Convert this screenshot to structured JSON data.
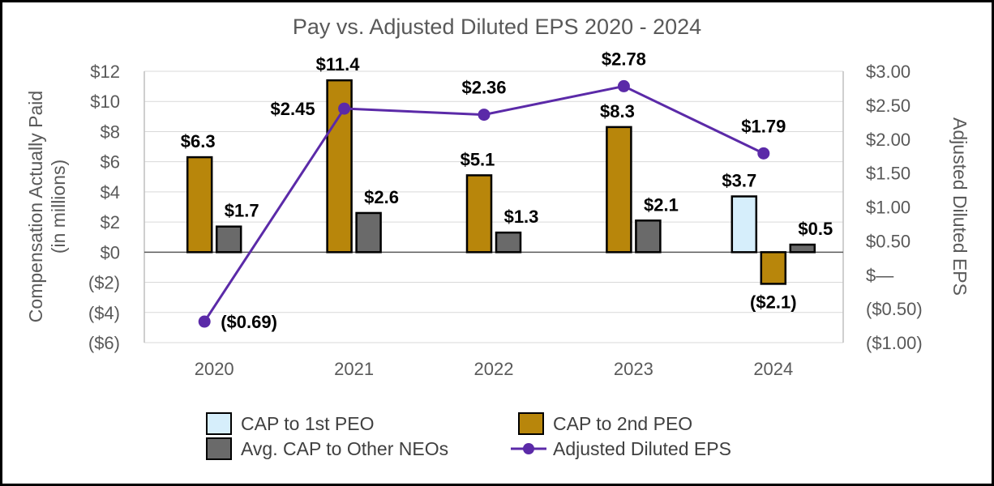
{
  "chart_data": {
    "type": "bar",
    "title": "Pay vs. Adjusted Diluted EPS 2020 - 2024",
    "categories": [
      "2020",
      "2021",
      "2022",
      "2023",
      "2024"
    ],
    "ylabel_left_line1": "Compensation Actually Paid",
    "ylabel_left_line2": "(in millions)",
    "ylabel_right": "Adjusted Diluted EPS",
    "ylim_left": [
      -6,
      12
    ],
    "ylim_right": [
      -1.0,
      3.0
    ],
    "left_ticks": [
      12,
      10,
      8,
      6,
      4,
      2,
      0,
      -2,
      -4,
      -6
    ],
    "left_tick_labels": [
      "$12",
      "$10",
      "$8",
      "$6",
      "$4",
      "$2",
      "$0",
      "($2)",
      "($4)",
      "($6)"
    ],
    "right_ticks": [
      3.0,
      2.5,
      2.0,
      1.5,
      1.0,
      0.5,
      0,
      -0.5,
      -1.0
    ],
    "right_tick_labels": [
      "$3.00",
      "$2.50",
      "$2.00",
      "$1.50",
      "$1.00",
      "$0.50",
      "$—",
      "($0.50)",
      "($1.00)"
    ],
    "series": [
      {
        "name": "CAP to 1st PEO",
        "type": "bar",
        "color": "#d6eefb",
        "values": [
          null,
          null,
          null,
          null,
          3.7
        ],
        "labels": [
          "",
          "",
          "",
          "",
          "$3.7"
        ]
      },
      {
        "name": "CAP to 2nd PEO",
        "type": "bar",
        "color": "#b8860b",
        "values": [
          6.3,
          11.4,
          5.1,
          8.3,
          -2.1
        ],
        "labels": [
          "$6.3",
          "$11.4",
          "$5.1",
          "$8.3",
          "($2.1)"
        ]
      },
      {
        "name": "Avg. CAP to Other NEOs",
        "type": "bar",
        "color": "#6a6a6a",
        "values": [
          1.7,
          2.6,
          1.3,
          2.1,
          0.5
        ],
        "labels": [
          "$1.7",
          "$2.6",
          "$1.3",
          "$2.1",
          "$0.5"
        ]
      },
      {
        "name": "Adjusted Diluted EPS",
        "type": "line",
        "axis": "right",
        "color": "#5b2aa8",
        "values": [
          -0.69,
          2.45,
          2.36,
          2.78,
          1.79
        ],
        "labels": [
          "($0.69)",
          "$2.45",
          "$2.36",
          "$2.78",
          "$1.79"
        ]
      }
    ],
    "legend": [
      "CAP to 1st PEO",
      "CAP to 2nd PEO",
      "Avg. CAP to Other NEOs",
      "Adjusted Diluted EPS"
    ],
    "legend_position": "bottom",
    "grid": true
  }
}
